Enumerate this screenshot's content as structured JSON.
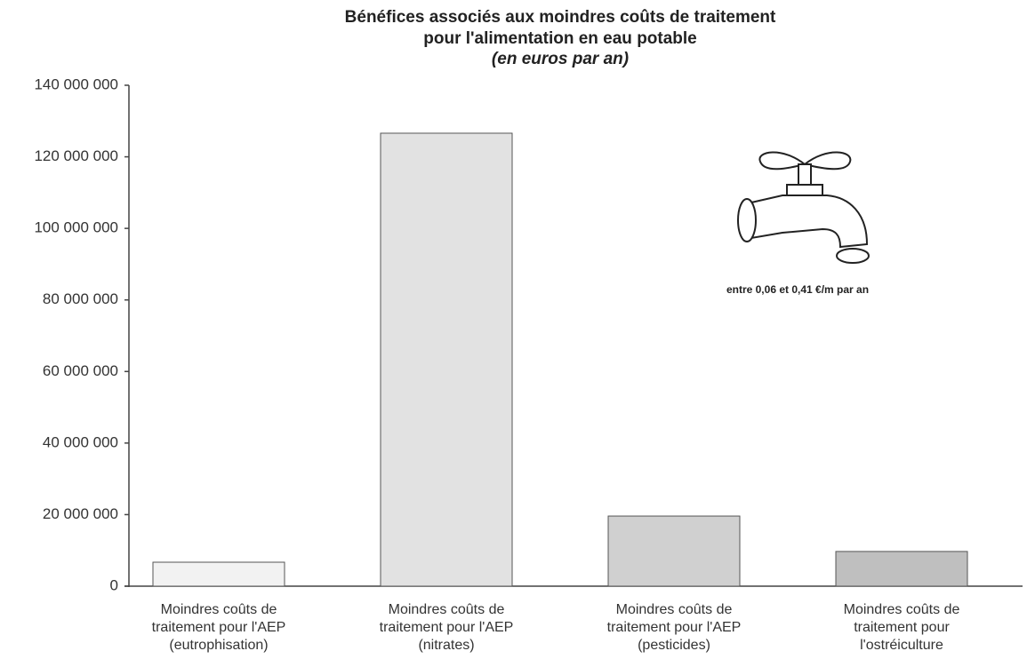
{
  "chart_data": {
    "type": "bar",
    "title": [
      "Bénéfices associés aux moindres coûts de traitement",
      "pour l'alimentation en eau potable",
      "(en euros par an)"
    ],
    "categories": [
      [
        "Moindres coûts de",
        "traitement pour l'AEP",
        "(eutrophisation)"
      ],
      [
        "Moindres coûts de",
        "traitement pour l'AEP",
        "(nitrates)"
      ],
      [
        "Moindres coûts de",
        "traitement pour l'AEP",
        "(pesticides)"
      ],
      [
        "Moindres coûts de",
        "traitement pour",
        "l'ostréiculture"
      ]
    ],
    "values": [
      6700000,
      126600000,
      19600000,
      9700000
    ],
    "colors": [
      "#f2f2f2",
      "#e2e2e2",
      "#d0d0d0",
      "#bfbfbf"
    ],
    "ylim": [
      0,
      140000000
    ],
    "yticks": [
      0,
      {
        "value": 20000000,
        "label": "20 000 000"
      },
      {
        "value": 40000000,
        "label": "40 000 000"
      },
      {
        "value": 60000000,
        "label": "60 000 000"
      },
      {
        "value": 80000000,
        "label": "80 000 000"
      },
      {
        "value": 100000000,
        "label": "100 000 000"
      },
      {
        "value": 120000000,
        "label": "120 000 000"
      },
      {
        "value": 140000000,
        "label": "140 000 000"
      }
    ],
    "grid": false,
    "annotation": "entre 0,06 et 0,41 €/m par an"
  }
}
